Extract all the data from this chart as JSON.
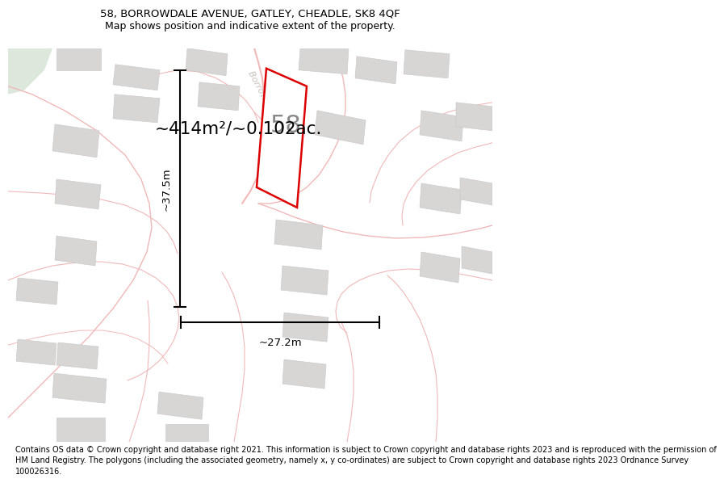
{
  "title_line1": "58, BORROWDALE AVENUE, GATLEY, CHEADLE, SK8 4QF",
  "title_line2": "Map shows position and indicative extent of the property.",
  "footer_lines": [
    "Contains OS data © Crown copyright and database right 2021. This information is subject to Crown copyright and database rights 2023 and is reproduced with the permission of",
    "HM Land Registry. The polygons (including the associated geometry, namely x, y co-ordinates) are subject to Crown copyright and database rights 2023 Ordnance Survey",
    "100026316."
  ],
  "area_text": "~414m²/~0.102ac.",
  "width_label": "~27.2m",
  "height_label": "~37.5m",
  "number_label": "58",
  "map_bg": "#f7f6f4",
  "road_color": "#f0b8b8",
  "building_color": "#d8d6d4",
  "building_edge": "#c8c6c4",
  "green_color": "#dce8dc",
  "plot_color": "#dd0000",
  "street_label_color": "#c8c0bc",
  "title_fs": 9.5,
  "footer_fs": 7.0
}
